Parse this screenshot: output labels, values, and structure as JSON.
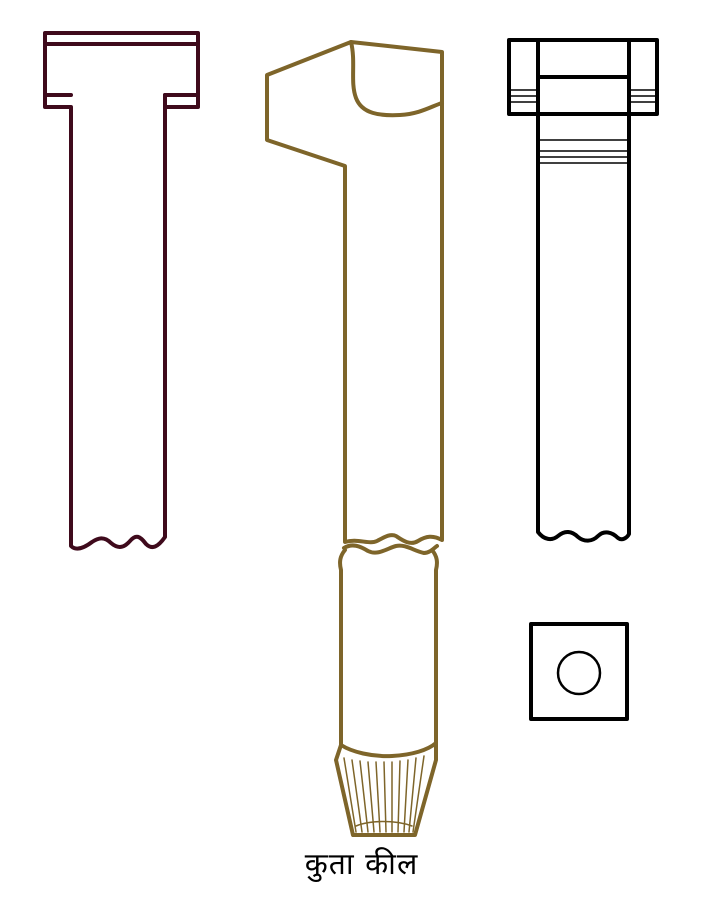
{
  "caption": "कुता कील",
  "colors": {
    "left_view": "#3f0a1c",
    "middle_view": "#7e652a",
    "right_view": "#000000",
    "background": "#ffffff"
  }
}
